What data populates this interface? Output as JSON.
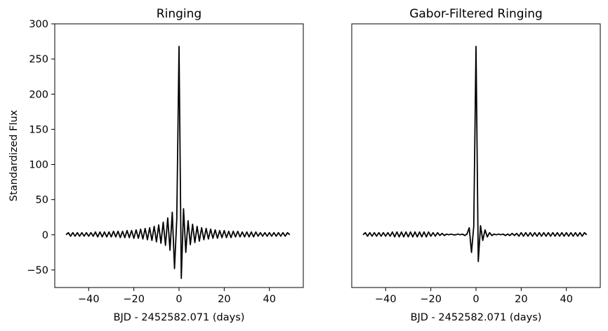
{
  "chart_data": [
    {
      "type": "line",
      "title": "Ringing",
      "xlabel": "BJD - 2452582.071 (days)",
      "ylabel": "Standardized Flux",
      "xlim": [
        -55,
        55
      ],
      "ylim": [
        -75,
        300
      ],
      "xticks": [
        -40,
        -20,
        0,
        20,
        40
      ],
      "xtick_labels": [
        "−40",
        "−20",
        "0",
        "20",
        "40"
      ],
      "yticks": [
        -50,
        0,
        50,
        100,
        150,
        200,
        250,
        300
      ],
      "ytick_labels": [
        "−50",
        "0",
        "50",
        "100",
        "150",
        "200",
        "250",
        "300"
      ],
      "show_yticklabels": true,
      "series": [
        {
          "color": "#000000",
          "x": [
            -50,
            -49,
            -48,
            -47,
            -46,
            -45,
            -44,
            -43,
            -42,
            -41,
            -40,
            -39,
            -38,
            -37,
            -36,
            -35,
            -34,
            -33,
            -32,
            -31,
            -30,
            -29,
            -28,
            -27,
            -26,
            -25,
            -24,
            -23,
            -22,
            -21,
            -20,
            -19,
            -18,
            -17,
            -16,
            -15,
            -14,
            -13,
            -12,
            -11,
            -10,
            -9,
            -8,
            -7,
            -6,
            -5,
            -4,
            -3,
            -2,
            -1,
            0,
            1,
            2,
            3,
            4,
            5,
            6,
            7,
            8,
            9,
            10,
            11,
            12,
            13,
            14,
            15,
            16,
            17,
            18,
            19,
            20,
            21,
            22,
            23,
            24,
            25,
            26,
            27,
            28,
            29,
            30,
            31,
            32,
            33,
            34,
            35,
            36,
            37,
            38,
            39,
            40,
            41,
            42,
            43,
            44,
            45,
            46,
            47,
            48,
            49
          ],
          "y": [
            0,
            3,
            -2,
            3,
            -2,
            3,
            -2,
            3,
            -2,
            3,
            -2,
            3,
            -2,
            4,
            -3,
            4,
            -3,
            4,
            -3,
            4,
            -3,
            5,
            -3,
            5,
            -4,
            5,
            -4,
            6,
            -4,
            6,
            -5,
            7,
            -5,
            8,
            -6,
            9,
            -7,
            10,
            -8,
            12,
            -10,
            14,
            -12,
            18,
            -15,
            24,
            -22,
            32,
            -48,
            22,
            268,
            -62,
            37,
            -25,
            20,
            -14,
            15,
            -11,
            12,
            -9,
            10,
            -7,
            9,
            -6,
            8,
            -5,
            7,
            -5,
            6,
            -4,
            6,
            -4,
            5,
            -4,
            5,
            -3,
            5,
            -3,
            4,
            -3,
            4,
            -3,
            4,
            -3,
            4,
            -2,
            3,
            -2,
            3,
            -2,
            3,
            -2,
            3,
            -2,
            3,
            -2,
            3,
            -2,
            3,
            0
          ]
        }
      ]
    },
    {
      "type": "line",
      "title": "Gabor-Filtered Ringing",
      "xlabel": "BJD - 2452582.071 (days)",
      "ylabel": "",
      "xlim": [
        -55,
        55
      ],
      "ylim": [
        -75,
        300
      ],
      "xticks": [
        -40,
        -20,
        0,
        20,
        40
      ],
      "xtick_labels": [
        "−40",
        "−20",
        "0",
        "20",
        "40"
      ],
      "yticks": [],
      "ytick_labels": [],
      "show_yticklabels": false,
      "series": [
        {
          "color": "#000000",
          "x": [
            -50,
            -49,
            -48,
            -47,
            -46,
            -45,
            -44,
            -43,
            -42,
            -41,
            -40,
            -39,
            -38,
            -37,
            -36,
            -35,
            -34,
            -33,
            -32,
            -31,
            -30,
            -29,
            -28,
            -27,
            -26,
            -25,
            -24,
            -23,
            -22,
            -21,
            -20,
            -19,
            -18,
            -17,
            -16,
            -15,
            -14,
            -13,
            -12,
            -11,
            -10,
            -9,
            -8,
            -7,
            -6,
            -5,
            -4,
            -3,
            -2,
            -1,
            0,
            1,
            2,
            3,
            4,
            5,
            6,
            7,
            8,
            9,
            10,
            11,
            12,
            13,
            14,
            15,
            16,
            17,
            18,
            19,
            20,
            21,
            22,
            23,
            24,
            25,
            26,
            27,
            28,
            29,
            30,
            31,
            32,
            33,
            34,
            35,
            36,
            37,
            38,
            39,
            40,
            41,
            42,
            43,
            44,
            45,
            46,
            47,
            48,
            49
          ],
          "y": [
            0,
            3,
            -2,
            3,
            -2,
            3,
            -2,
            3,
            -2,
            3,
            -2,
            3,
            -2,
            4,
            -3,
            4,
            -3,
            4,
            -3,
            4,
            -3,
            4,
            -3,
            4,
            -3,
            4,
            -3,
            4,
            -3,
            4,
            -2,
            3,
            -2,
            3,
            -1,
            2,
            -1,
            1,
            0,
            1,
            0,
            0,
            1,
            0,
            1,
            -1,
            1,
            10,
            -25,
            12,
            268,
            -38,
            13,
            -8,
            7,
            -3,
            3,
            -1,
            1,
            0,
            1,
            0,
            1,
            -1,
            1,
            -1,
            2,
            -1,
            2,
            -2,
            3,
            -2,
            3,
            -2,
            3,
            -2,
            3,
            -2,
            3,
            -2,
            3,
            -2,
            3,
            -2,
            3,
            -2,
            3,
            -2,
            3,
            -2,
            3,
            -2,
            3,
            -2,
            3,
            -2,
            3,
            -2,
            3,
            0
          ]
        }
      ]
    }
  ]
}
